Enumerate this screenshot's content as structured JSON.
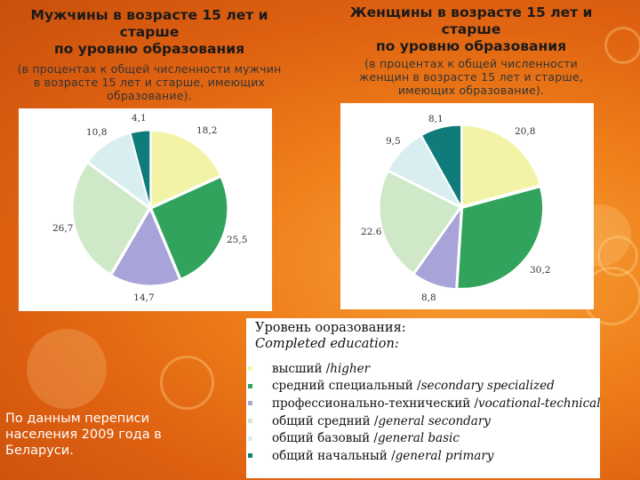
{
  "men": {
    "title": "Мужчины в возрасте 15 лет и старше\nпо уровню образования",
    "subtitle": "(в процентах к общей численности мужчин в возрасте 15 лет и старше, имеющих образование)."
  },
  "women": {
    "title": "Женщины в возрасте 15 лет и старше\nпо уровню образования",
    "subtitle": "(в процентах к общей численности женщин в возрасте 15 лет и старше, имеющих образование)."
  },
  "footnote": "По данным переписи населения 2009 года в Беларуси.",
  "legend": {
    "title": "Уровень ооразования:",
    "subtitle": "Completed education:",
    "items": [
      {
        "ru": "высший / ",
        "en": "higher"
      },
      {
        "ru": "средний специальный / ",
        "en": "secondary specialized"
      },
      {
        "ru": "профессионально-технический / ",
        "en": "vocational-technical"
      },
      {
        "ru": "общий средний / ",
        "en": "general secondary"
      },
      {
        "ru": "общий базовый / ",
        "en": "general basic"
      },
      {
        "ru": "общий начальный / ",
        "en": "general primary"
      }
    ]
  },
  "colors": [
    "#f2f3a6",
    "#31a35c",
    "#a8a3d8",
    "#cfe9c8",
    "#d8eef0",
    "#0f7b7b"
  ],
  "chart_data": [
    {
      "type": "pie",
      "title": "Мужчины в возрасте 15 лет и старше по уровню образования",
      "categories": [
        "высший",
        "средний специальный",
        "профессионально-технический",
        "общий средний",
        "общий базовый",
        "общий начальный"
      ],
      "values": [
        18.2,
        25.5,
        14.7,
        26.7,
        10.8,
        4.1
      ],
      "labels": [
        "18,2",
        "25,5",
        "14,7",
        "26,7",
        "10,8",
        "4,1"
      ]
    },
    {
      "type": "pie",
      "title": "Женщины в возрасте 15 лет и старше по уровню образования",
      "categories": [
        "высший",
        "средний специальный",
        "профессионально-технический",
        "общий средний",
        "общий базовый",
        "общий начальный"
      ],
      "values": [
        20.8,
        30.2,
        8.8,
        22.6,
        9.5,
        8.1
      ],
      "labels": [
        "20,8",
        "30,2",
        "8,8",
        "22.6",
        "9,5",
        "8,1"
      ]
    }
  ]
}
